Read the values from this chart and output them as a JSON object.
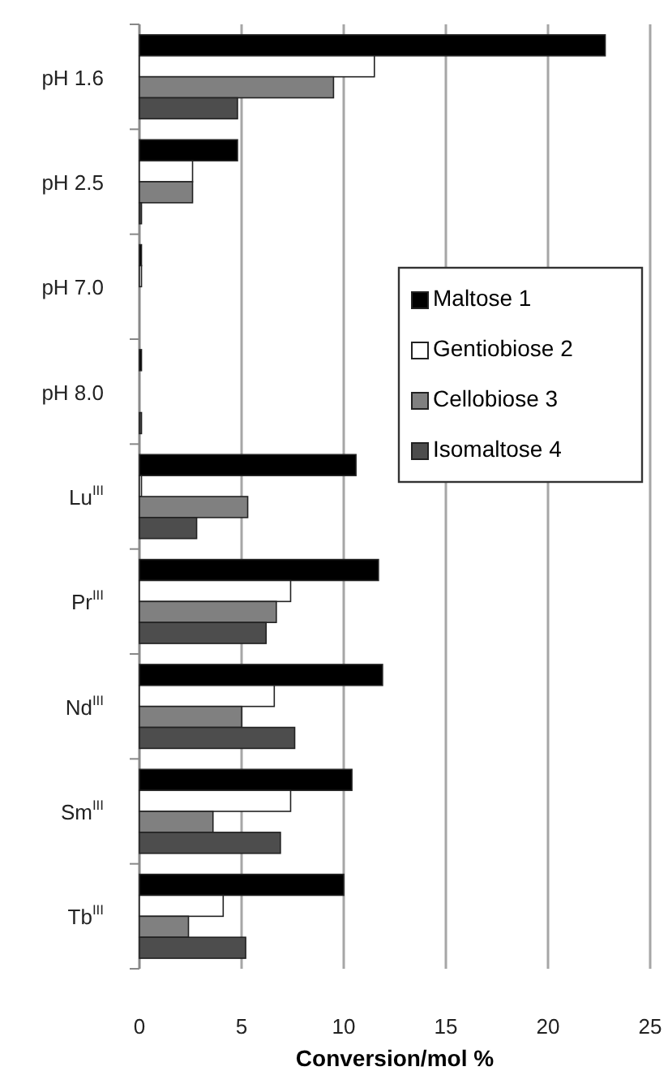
{
  "chart_data": {
    "type": "bar",
    "orientation": "horizontal",
    "xlabel": "Conversion/mol %",
    "categories": [
      "pH 1.6",
      "pH 2.5",
      "pH 7.0",
      "pH 8.0",
      "Lu$^{III}$",
      "Pr$^{III}$",
      "Nd$^{III}$",
      "Sm$^{III}$",
      "Tb$^{III}$"
    ],
    "series": [
      {
        "name": "Maltose 1",
        "color": "#000000",
        "values": [
          22.8,
          4.8,
          0.1,
          0.1,
          10.6,
          11.7,
          11.9,
          10.4,
          10.0
        ]
      },
      {
        "name": "Gentiobiose 2",
        "color": "#ffffff",
        "values": [
          11.5,
          2.6,
          0.1,
          0,
          0.1,
          7.4,
          6.6,
          7.4,
          4.1
        ]
      },
      {
        "name": "Cellobiose 3",
        "color": "#808080",
        "values": [
          9.5,
          2.6,
          0,
          0,
          5.3,
          6.7,
          5.0,
          3.6,
          2.4
        ]
      },
      {
        "name": "Isomaltose 4",
        "color": "#4d4d4d",
        "values": [
          4.8,
          0.1,
          0,
          0.1,
          2.8,
          6.2,
          7.6,
          6.9,
          5.2
        ]
      }
    ],
    "xlim": [
      0,
      25
    ],
    "xticks": [
      0,
      5,
      10,
      15,
      20,
      25
    ],
    "grid": "x",
    "legend": "right"
  }
}
